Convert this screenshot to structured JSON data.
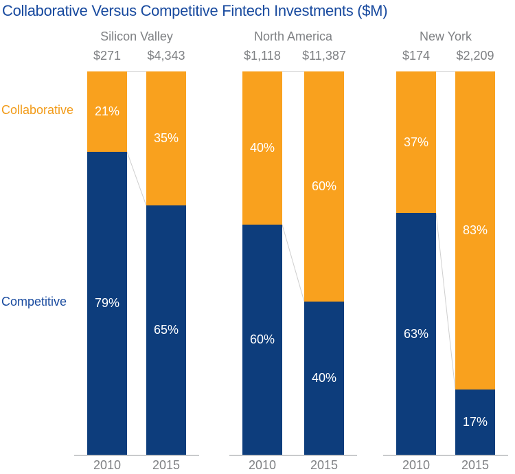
{
  "title": "Collaborative Versus Competitive Fintech Investments ($M)",
  "colors": {
    "collaborative": "#F9A11E",
    "competitive": "#0D3D7C",
    "collaborative_text": "#F29A16",
    "title_text": "#17499E",
    "gray_text": "#7F8184",
    "axis_line": "#C9CACC",
    "connector_line": "#CFCFCF"
  },
  "legend": {
    "collaborative_label": "Collaborative",
    "competitive_label": "Competitive"
  },
  "chart_data": {
    "type": "bar",
    "stacked": true,
    "title": "Collaborative Versus Competitive Fintech Investments ($M)",
    "categories": [
      "2010",
      "2015"
    ],
    "series_names": [
      "Collaborative",
      "Competitive"
    ],
    "legend_position": "left",
    "ylim_pct": [
      0,
      100
    ],
    "groups": [
      {
        "label": "Silicon Valley",
        "bars": [
          {
            "year": "2010",
            "total": "$271",
            "total_m": 271,
            "collaborative_pct": 21,
            "competitive_pct": 79,
            "collaborative_label": "21%",
            "competitive_label": "79%"
          },
          {
            "year": "2015",
            "total": "$4,343",
            "total_m": 4343,
            "collaborative_pct": 35,
            "competitive_pct": 65,
            "collaborative_label": "35%",
            "competitive_label": "65%"
          }
        ]
      },
      {
        "label": "North America",
        "bars": [
          {
            "year": "2010",
            "total": "$1,118",
            "total_m": 1118,
            "collaborative_pct": 40,
            "competitive_pct": 60,
            "collaborative_label": "40%",
            "competitive_label": "60%"
          },
          {
            "year": "2015",
            "total": "$11,387",
            "total_m": 11387,
            "collaborative_pct": 60,
            "competitive_pct": 40,
            "collaborative_label": "60%",
            "competitive_label": "40%"
          }
        ]
      },
      {
        "label": "New York",
        "bars": [
          {
            "year": "2010",
            "total": "$174",
            "total_m": 174,
            "collaborative_pct": 37,
            "competitive_pct": 63,
            "collaborative_label": "37%",
            "competitive_label": "63%"
          },
          {
            "year": "2015",
            "total": "$2,209",
            "total_m": 2209,
            "collaborative_pct": 83,
            "competitive_pct": 17,
            "collaborative_label": "83%",
            "competitive_label": "17%"
          }
        ]
      }
    ]
  }
}
